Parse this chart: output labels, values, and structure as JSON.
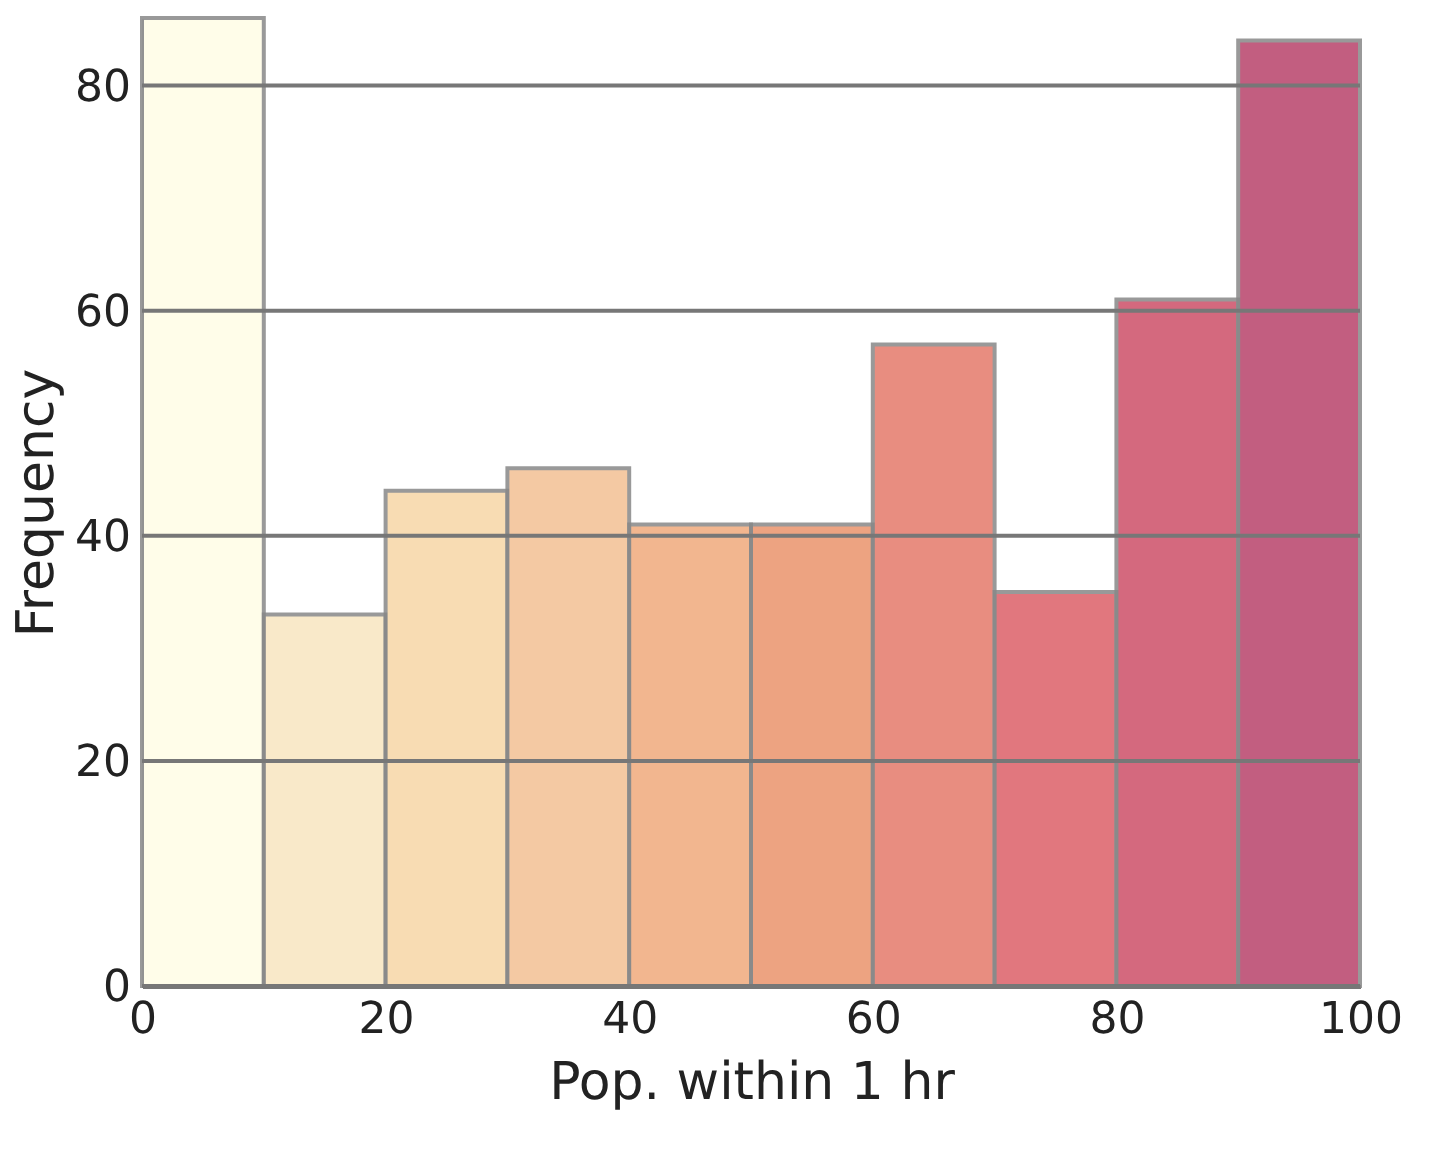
{
  "chart_data": {
    "type": "histogram",
    "xlabel": "Pop. within 1 hr",
    "ylabel": "Frequency",
    "bins": [
      0,
      10,
      20,
      30,
      40,
      50,
      60,
      70,
      80,
      90,
      100
    ],
    "values": [
      86,
      33,
      44,
      46,
      41,
      41,
      57,
      35,
      61,
      84
    ],
    "colors": [
      "#fffde6",
      "#f9e6c0",
      "#f7d6a6",
      "#f3c094",
      "#f0aa7c",
      "#eb936c",
      "#e47a6b",
      "#dc6068",
      "#cd5068",
      "#b8436b"
    ],
    "xlim": [
      0,
      100
    ],
    "xticks": [
      0,
      20,
      40,
      60,
      80,
      100
    ],
    "ylim": [
      0,
      86
    ],
    "yticks": [
      0,
      20,
      40,
      60,
      80
    ],
    "grid": "y"
  }
}
